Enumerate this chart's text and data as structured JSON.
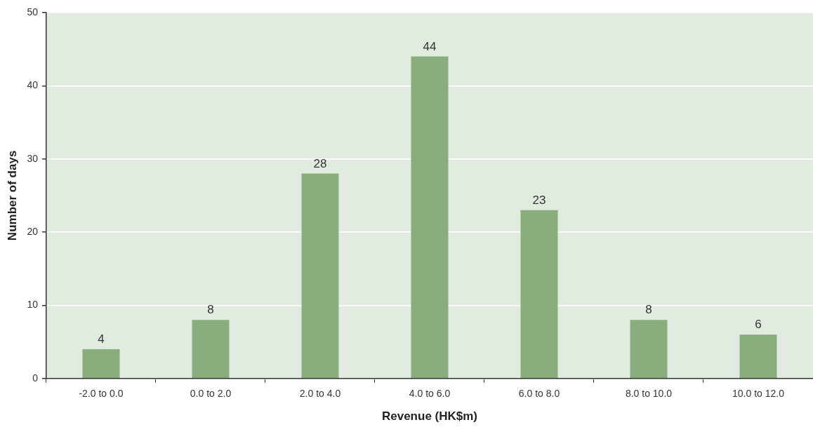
{
  "chart_data": {
    "type": "bar",
    "xlabel": "Revenue (HK$m)",
    "ylabel": "Number of days",
    "categories": [
      "-2.0 to 0.0",
      "0.0 to 2.0",
      "2.0 to 4.0",
      "4.0 to 6.0",
      "6.0 to 8.0",
      "8.0 to 10.0",
      "10.0 to 12.0"
    ],
    "values": [
      4,
      8,
      28,
      44,
      23,
      8,
      6
    ],
    "color": "#8aad7e",
    "ylim": [
      0,
      50
    ],
    "yticks": [
      0,
      10,
      20,
      30,
      40,
      50
    ],
    "grid": "y",
    "data_labels": true
  }
}
